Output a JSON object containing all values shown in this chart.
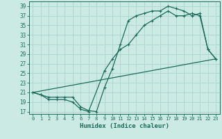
{
  "xlabel": "Humidex (Indice chaleur)",
  "bg_color": "#cceae4",
  "grid_color": "#aad4cc",
  "line_color": "#1a6b5a",
  "xlim": [
    -0.5,
    23.5
  ],
  "ylim": [
    16.5,
    40
  ],
  "yticks": [
    17,
    19,
    21,
    23,
    25,
    27,
    29,
    31,
    33,
    35,
    37,
    39
  ],
  "xticks": [
    0,
    1,
    2,
    3,
    4,
    5,
    6,
    7,
    8,
    9,
    10,
    11,
    12,
    13,
    14,
    15,
    16,
    17,
    18,
    19,
    20,
    21,
    22,
    23
  ],
  "line1_x": [
    0,
    1,
    2,
    3,
    4,
    5,
    6,
    7,
    8,
    9,
    10,
    11,
    12,
    13,
    14,
    15,
    16,
    17,
    18,
    19,
    20,
    21,
    22,
    23
  ],
  "line1_y": [
    21,
    20.5,
    20,
    20,
    20,
    20,
    18,
    17.2,
    17,
    22,
    26,
    31,
    36,
    37,
    37.5,
    38,
    38,
    39,
    38.5,
    38,
    37,
    37.5,
    30,
    28
  ],
  "line2_x": [
    0,
    1,
    2,
    3,
    4,
    5,
    6,
    7,
    9,
    10,
    11,
    12,
    13,
    14,
    15,
    16,
    17,
    18,
    19,
    20,
    21,
    22,
    23
  ],
  "line2_y": [
    21,
    20.5,
    19.5,
    19.5,
    19.5,
    19,
    17.5,
    17,
    25.5,
    28,
    30,
    31,
    33,
    35,
    36,
    37,
    38,
    37,
    37,
    37.5,
    37,
    30,
    28
  ],
  "line3_x": [
    0,
    23
  ],
  "line3_y": [
    21,
    28
  ]
}
